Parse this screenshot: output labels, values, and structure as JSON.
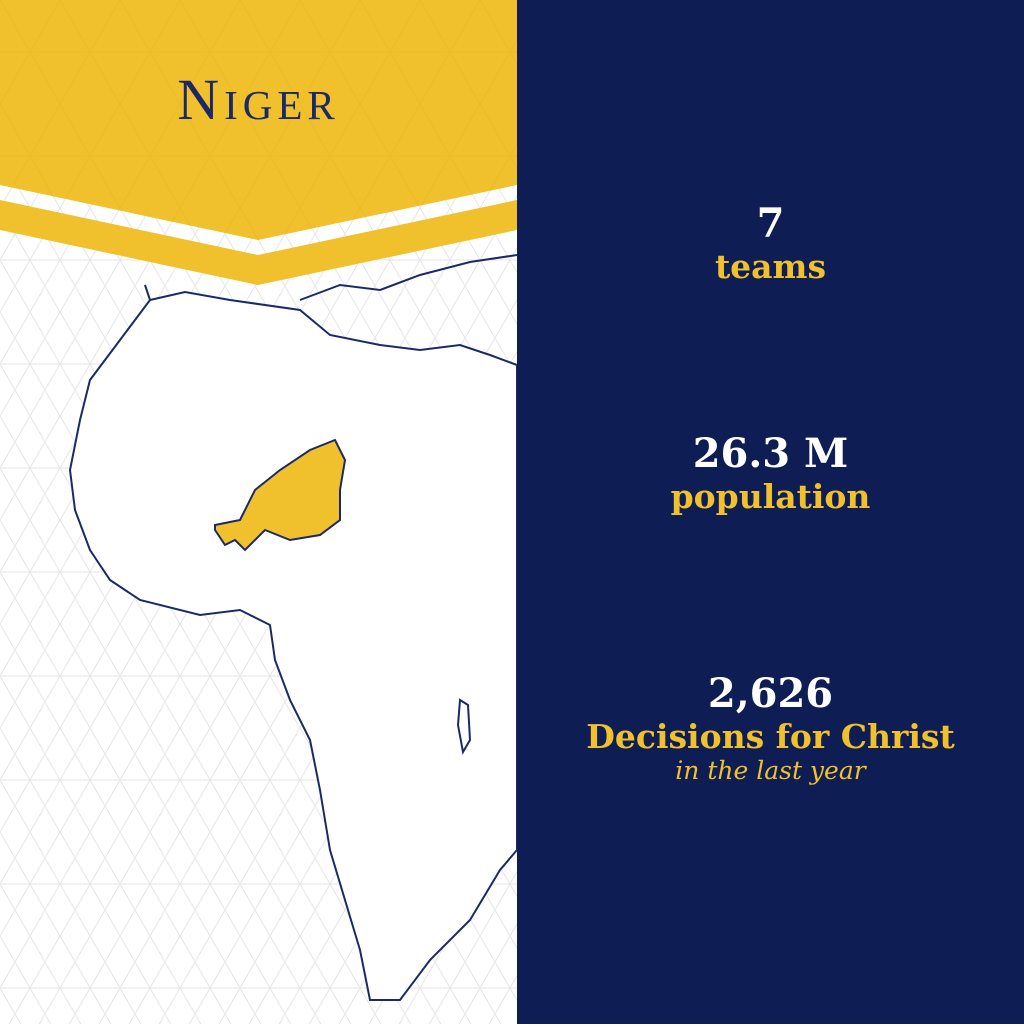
{
  "header": {
    "title": "Niger"
  },
  "stats": [
    {
      "value": "7",
      "label": "teams"
    },
    {
      "value": "26.3 M",
      "label": "population"
    },
    {
      "value": "2,626",
      "label": "Decisions for Christ",
      "note": "in the last year"
    }
  ]
}
